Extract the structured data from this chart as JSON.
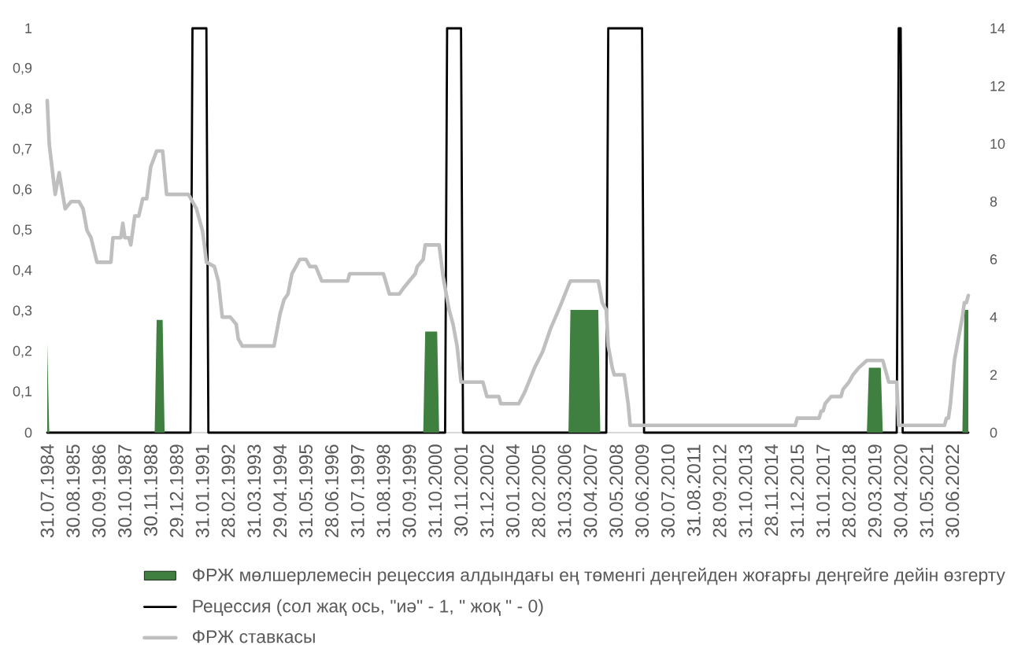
{
  "chart_data": {
    "type": "line",
    "xlim": [
      "1984-07",
      "2023-02"
    ],
    "xticks": [
      {
        "value": "1984-07",
        "label": "31.07.1984"
      },
      {
        "value": "1985-08",
        "label": "30.08.1985"
      },
      {
        "value": "1986-09",
        "label": "30.09.1986"
      },
      {
        "value": "1987-10",
        "label": "30.10.1987"
      },
      {
        "value": "1988-11",
        "label": "30.11.1988"
      },
      {
        "value": "1989-12",
        "label": "29.12.1989"
      },
      {
        "value": "1991-01",
        "label": "31.01.1991"
      },
      {
        "value": "1992-02",
        "label": "28.02.1992"
      },
      {
        "value": "1993-03",
        "label": "31.03.1993"
      },
      {
        "value": "1994-04",
        "label": "29.04.1994"
      },
      {
        "value": "1995-05",
        "label": "31.05.1995"
      },
      {
        "value": "1996-06",
        "label": "28.06.1996"
      },
      {
        "value": "1997-07",
        "label": "31.07.1997"
      },
      {
        "value": "1998-08",
        "label": "31.08.1998"
      },
      {
        "value": "1999-09",
        "label": "30.09.1999"
      },
      {
        "value": "2000-10",
        "label": "31.10.2000"
      },
      {
        "value": "2001-11",
        "label": "30.11.2001"
      },
      {
        "value": "2002-12",
        "label": "31.12.2002"
      },
      {
        "value": "2004-01",
        "label": "30.01.2004"
      },
      {
        "value": "2005-02",
        "label": "28.02.2005"
      },
      {
        "value": "2006-03",
        "label": "31.03.2006"
      },
      {
        "value": "2007-04",
        "label": "30.04.2007"
      },
      {
        "value": "2008-05",
        "label": "30.05.2008"
      },
      {
        "value": "2009-06",
        "label": "30.06.2009"
      },
      {
        "value": "2010-07",
        "label": "30.07.2010"
      },
      {
        "value": "2011-08",
        "label": "31.08.2011"
      },
      {
        "value": "2012-09",
        "label": "28.09.2012"
      },
      {
        "value": "2013-10",
        "label": "31.10.2013"
      },
      {
        "value": "2014-11",
        "label": "28.11.2014"
      },
      {
        "value": "2015-12",
        "label": "31.12.2015"
      },
      {
        "value": "2017-01",
        "label": "31.01.2017"
      },
      {
        "value": "2018-02",
        "label": "28.02.2018"
      },
      {
        "value": "2019-03",
        "label": "29.03.2019"
      },
      {
        "value": "2020-04",
        "label": "30.04.2020"
      },
      {
        "value": "2021-05",
        "label": "31.05.2021"
      },
      {
        "value": "2022-06",
        "label": "30.06.2022"
      }
    ],
    "ylim": [
      0,
      1
    ],
    "yticks": [
      0,
      {
        "value": 0.1,
        "label": "0,1"
      },
      {
        "value": 0.2,
        "label": "0,2"
      },
      {
        "value": 0.3,
        "label": "0,3"
      },
      {
        "value": 0.4,
        "label": "0,4"
      },
      {
        "value": 0.5,
        "label": "0,5"
      },
      {
        "value": 0.6,
        "label": "0,6"
      },
      {
        "value": 0.7,
        "label": "0,7"
      },
      {
        "value": 0.8,
        "label": "0,8"
      },
      {
        "value": 0.9,
        "label": "0,9"
      },
      1
    ],
    "y2lim": [
      0,
      14
    ],
    "y2ticks": [
      0,
      2,
      4,
      6,
      8,
      10,
      12,
      14
    ],
    "legend": "bottom",
    "marker": "none",
    "series": [
      {
        "name": "ФРЖ мөлшерлемесін рецессия алдындағы ең төменгі деңгейден жоғарғы деңгейге дейін өзгерту",
        "type": "area",
        "axis": "y2",
        "color": "#3f7f3f",
        "x": [
          "1984-07",
          "1984-08",
          "1989-01",
          "1989-02",
          "1989-05",
          "1989-06",
          "2000-04",
          "2000-05",
          "2000-11",
          "2000-12",
          "2006-05",
          "2006-06",
          "2007-08",
          "2007-09",
          "2018-11",
          "2018-12",
          "2019-06",
          "2019-07",
          "2022-11",
          "2022-12",
          "2023-02"
        ],
        "values": [
          3.1,
          0,
          0,
          3.9,
          3.9,
          0,
          0,
          3.5,
          3.5,
          0,
          0,
          4.25,
          4.25,
          0,
          0,
          2.25,
          2.25,
          0,
          0,
          4.25,
          4.25
        ]
      },
      {
        "name": "Рецессия (сол жақ ось, \"иә\" - 1, \" жоқ \" - 0)",
        "axis": "y",
        "color": "#000000",
        "x": [
          "1984-07",
          "1990-07",
          "1990-08",
          "1991-03",
          "1991-04",
          "2001-03",
          "2001-04",
          "2001-11",
          "2001-12",
          "2007-12",
          "2008-01",
          "2009-06",
          "2009-07",
          "2020-02",
          "2020-03",
          "2020-04",
          "2020-05",
          "2023-02"
        ],
        "values": [
          0,
          0,
          1,
          1,
          0,
          0,
          1,
          1,
          0,
          0,
          1,
          1,
          0,
          0,
          1,
          1,
          0,
          0
        ]
      },
      {
        "name": "ФРЖ ставкасы",
        "axis": "y2",
        "color": "#bfbfbf",
        "x": [
          "1984-07",
          "1984-08",
          "1984-11",
          "1985-01",
          "1985-04",
          "1985-07",
          "1985-11",
          "1986-01",
          "1986-03",
          "1986-05",
          "1986-08",
          "1987-03",
          "1987-04",
          "1987-08",
          "1987-09",
          "1987-10",
          "1987-12",
          "1988-01",
          "1988-03",
          "1988-05",
          "1988-07",
          "1988-09",
          "1988-11",
          "1989-02",
          "1989-05",
          "1989-07",
          "1990-06",
          "1990-08",
          "1990-10",
          "1991-01",
          "1991-02",
          "1991-03",
          "1991-07",
          "1991-09",
          "1991-11",
          "1992-03",
          "1992-06",
          "1992-07",
          "1992-09",
          "1994-01",
          "1994-04",
          "1994-06",
          "1994-08",
          "1994-10",
          "1995-02",
          "1995-05",
          "1995-07",
          "1995-10",
          "1996-01",
          "1997-02",
          "1997-03",
          "1998-08",
          "1998-11",
          "1999-04",
          "1999-06",
          "1999-09",
          "1999-12",
          "2000-01",
          "2000-04",
          "2000-05",
          "2000-12",
          "2001-02",
          "2001-05",
          "2001-07",
          "2001-09",
          "2001-11",
          "2002-10",
          "2002-12",
          "2003-06",
          "2003-07",
          "2004-04",
          "2004-07",
          "2004-12",
          "2005-04",
          "2005-08",
          "2006-01",
          "2006-05",
          "2006-06",
          "2007-08",
          "2007-10",
          "2007-12",
          "2008-01",
          "2008-03",
          "2008-04",
          "2008-09",
          "2008-10",
          "2008-11",
          "2008-12",
          "2015-11",
          "2015-12",
          "2016-11",
          "2016-12",
          "2017-01",
          "2017-02",
          "2017-05",
          "2017-10",
          "2017-11",
          "2018-02",
          "2018-04",
          "2018-07",
          "2018-11",
          "2019-07",
          "2019-08",
          "2019-09",
          "2019-10",
          "2020-02",
          "2020-03",
          "2022-02",
          "2022-03",
          "2022-04",
          "2022-05",
          "2022-06",
          "2022-07",
          "2022-09",
          "2022-11",
          "2022-12",
          "2023-01",
          "2023-02"
        ],
        "values": [
          11.5,
          10.0,
          8.25,
          9.0,
          7.75,
          8.0,
          8.0,
          7.75,
          7.0,
          6.75,
          5.9,
          5.9,
          6.75,
          6.75,
          7.25,
          6.75,
          6.75,
          6.5,
          7.5,
          7.5,
          8.1,
          8.1,
          9.2,
          9.75,
          9.75,
          8.25,
          8.25,
          8.0,
          7.75,
          7.0,
          6.5,
          5.9,
          5.75,
          5.25,
          4.0,
          4.0,
          3.75,
          3.25,
          3.0,
          3.0,
          4.1,
          4.6,
          4.8,
          5.5,
          6.0,
          6.0,
          5.75,
          5.75,
          5.25,
          5.25,
          5.5,
          5.5,
          4.8,
          4.8,
          5.0,
          5.25,
          5.5,
          5.75,
          6.0,
          6.5,
          6.5,
          5.4,
          4.25,
          3.75,
          3.0,
          1.75,
          1.75,
          1.25,
          1.25,
          1.0,
          1.0,
          1.4,
          2.25,
          2.8,
          3.6,
          4.4,
          5.1,
          5.25,
          5.25,
          4.5,
          4.25,
          3.0,
          2.25,
          2.0,
          2.0,
          1.5,
          1.0,
          0.25,
          0.25,
          0.5,
          0.5,
          0.75,
          0.75,
          1.0,
          1.25,
          1.25,
          1.5,
          1.75,
          2.0,
          2.25,
          2.5,
          2.5,
          2.25,
          2.0,
          1.75,
          1.75,
          0.25,
          0.25,
          0.5,
          0.5,
          1.0,
          1.75,
          2.5,
          3.25,
          4.0,
          4.5,
          4.5,
          4.75
        ]
      }
    ]
  }
}
